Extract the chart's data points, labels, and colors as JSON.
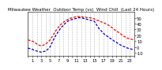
{
  "title": "Milwaukee Weather  Outdoor Temp (vs)  Wind Chill  (Last 24 Hours)",
  "bg_color": "#ffffff",
  "plot_bg": "#ffffff",
  "grid_color": "#888888",
  "line_color_temp": "#ff0000",
  "line_color_chill": "#0000cc",
  "x_ticks": [
    0,
    1,
    2,
    3,
    4,
    5,
    6,
    7,
    8,
    9,
    10,
    11,
    12,
    13,
    14,
    15,
    16,
    17,
    18,
    19,
    20,
    21,
    22,
    23,
    24
  ],
  "x_tick_labels": [
    "",
    "1",
    "",
    "3",
    "",
    "5",
    "",
    "7",
    "",
    "9",
    "",
    "11",
    "",
    "13",
    "",
    "15",
    "",
    "17",
    "",
    "19",
    "",
    "21",
    "",
    "23",
    ""
  ],
  "ylim": [
    -15,
    60
  ],
  "xlim": [
    0,
    24
  ],
  "y_ticks": [
    -10,
    0,
    10,
    20,
    30,
    40,
    50
  ],
  "y_tick_labels": [
    "-10",
    "0",
    "10",
    "20",
    "30",
    "40",
    "50"
  ],
  "temp_x": [
    0,
    0.5,
    1,
    1.5,
    2,
    2.5,
    3,
    3.5,
    4,
    4.5,
    5,
    5.5,
    6,
    6.5,
    7,
    7.5,
    8,
    8.5,
    9,
    9.5,
    10,
    10.5,
    11,
    11.5,
    12,
    12.5,
    13,
    13.5,
    14,
    14.5,
    15,
    15.5,
    16,
    16.5,
    17,
    17.5,
    18,
    18.5,
    19,
    19.5,
    20,
    20.5,
    21,
    21.5,
    22,
    22.5,
    23,
    23.5,
    24
  ],
  "temp_y": [
    12,
    11,
    10,
    8,
    5,
    3,
    2,
    3,
    5,
    8,
    12,
    18,
    24,
    30,
    35,
    39,
    42,
    45,
    47,
    49,
    50,
    51,
    52,
    52,
    52,
    51,
    51,
    50,
    50,
    49,
    48,
    46,
    45,
    43,
    42,
    40,
    38,
    36,
    33,
    30,
    27,
    25,
    22,
    19,
    17,
    15,
    14,
    13,
    12
  ],
  "chill_x": [
    0,
    0.5,
    1,
    1.5,
    2,
    2.5,
    3,
    3.5,
    4,
    4.5,
    5,
    5.5,
    6,
    6.5,
    7,
    7.5,
    8,
    8.5,
    9,
    9.5,
    10,
    10.5,
    11,
    11.5,
    12,
    12.5,
    13,
    13.5,
    14,
    14.5,
    15,
    15.5,
    16,
    16.5,
    17,
    17.5,
    18,
    18.5,
    19,
    19.5,
    20,
    20.5,
    21,
    21.5,
    22,
    22.5,
    23,
    23.5,
    24
  ],
  "chill_y": [
    -2,
    -3,
    -4,
    -6,
    -7,
    -8,
    -9,
    -8,
    -7,
    -4,
    0,
    8,
    16,
    22,
    28,
    33,
    37,
    41,
    44,
    46,
    47,
    48,
    49,
    50,
    50,
    49,
    48,
    47,
    46,
    45,
    44,
    38,
    32,
    28,
    24,
    20,
    18,
    15,
    13,
    10,
    8,
    5,
    3,
    1,
    0,
    -2,
    -3,
    -4,
    -5
  ],
  "title_fontsize": 4.0,
  "tick_fontsize": 3.8,
  "linewidth": 0.9
}
